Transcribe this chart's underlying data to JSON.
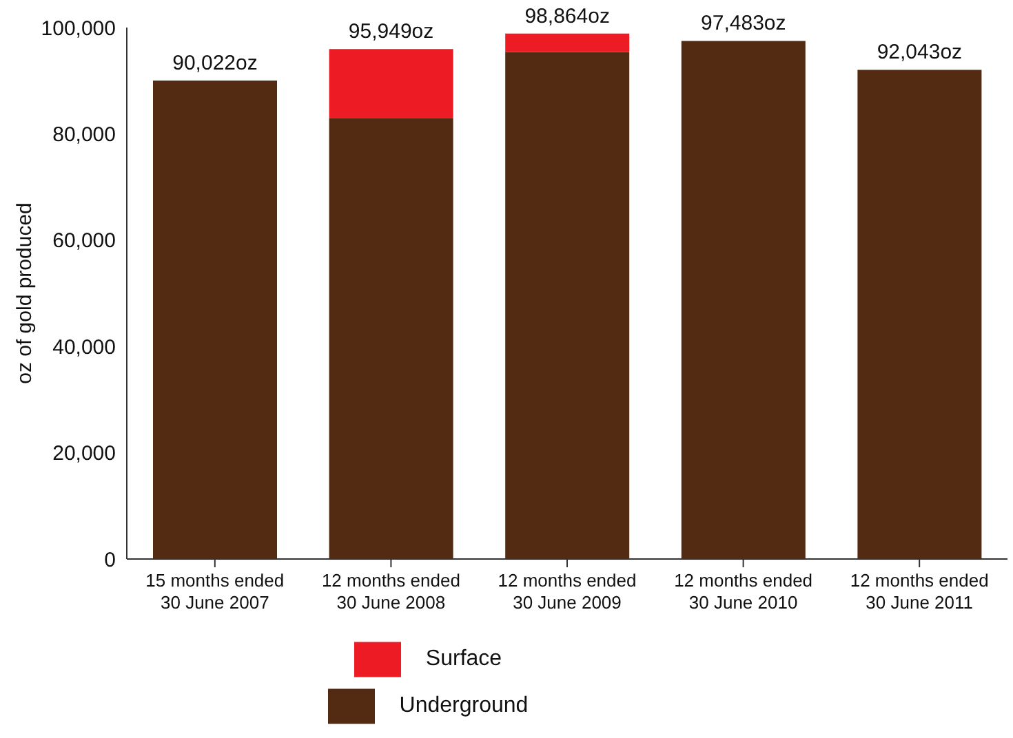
{
  "chart_data": {
    "type": "bar",
    "stacked": true,
    "ylabel": "oz of gold produced",
    "categories": [
      "15 months ended 30 June 2007",
      "12 months ended 30 June 2008",
      "12 months ended 30 June 2009",
      "12 months ended 30 June 2010",
      "12 months ended 30 June 2011"
    ],
    "series": [
      {
        "name": "Underground",
        "color": "#532b12",
        "values": [
          90022,
          83000,
          95400,
          97483,
          92043
        ]
      },
      {
        "name": "Surface",
        "color": "#ed1c24",
        "values": [
          null,
          12949,
          3464,
          null,
          null
        ]
      }
    ],
    "totals": [
      "90,022oz",
      "95,949oz",
      "98,864oz",
      "97,483oz",
      "92,043oz"
    ],
    "ylim": [
      0,
      100000
    ],
    "yticks": [
      {
        "value": 0,
        "label": "0"
      },
      {
        "value": 20000,
        "label": "20,000"
      },
      {
        "value": 40000,
        "label": "40,000"
      },
      {
        "value": 60000,
        "label": "60,000"
      },
      {
        "value": 80000,
        "label": "80,000"
      },
      {
        "value": 100000,
        "label": "100,000"
      }
    ],
    "grid": false,
    "legend": "bottom"
  }
}
